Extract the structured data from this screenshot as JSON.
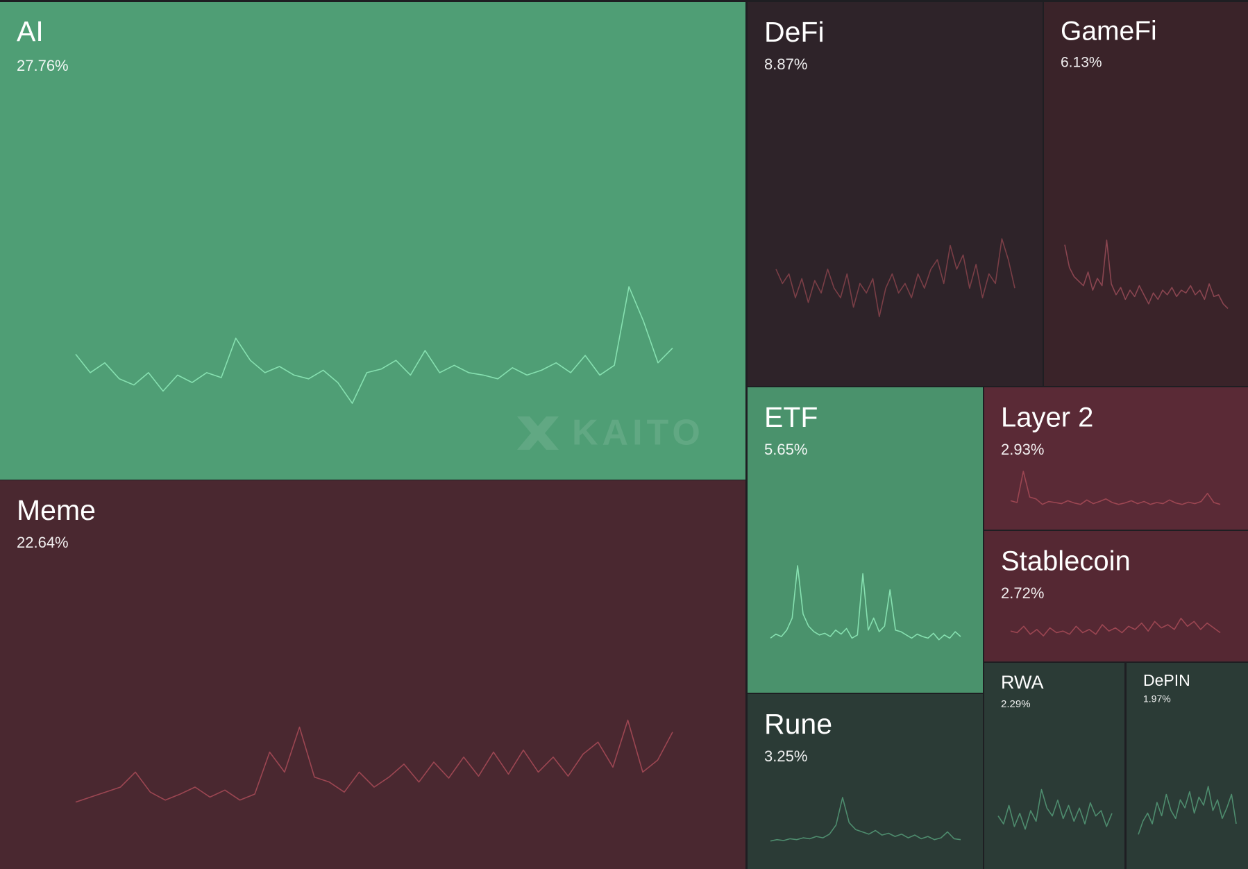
{
  "chart_data": {
    "type": "treemap",
    "watermark": "KAITO",
    "categories": [
      "AI",
      "Meme",
      "DeFi",
      "GameFi",
      "ETF",
      "Layer 2",
      "Stablecoin",
      "Rune",
      "RWA",
      "DePIN"
    ],
    "values": [
      27.76,
      22.64,
      8.87,
      6.13,
      5.65,
      2.93,
      2.72,
      3.25,
      2.29,
      1.97
    ],
    "value_labels": [
      "27.76%",
      "22.64%",
      "8.87%",
      "6.13%",
      "5.65%",
      "2.93%",
      "2.72%",
      "3.25%",
      "2.29%",
      "1.97%"
    ],
    "colors": [
      "#4f9e75",
      "#4a2830",
      "#2e2329",
      "#3a2329",
      "#4a926c",
      "#5a2a36",
      "#552833",
      "#2b3b36",
      "#2b3b36",
      "#2b3b36"
    ],
    "line_colors": [
      "#86e0b0",
      "#9c4652",
      "#7a3e46",
      "#8a4550",
      "#86e0b0",
      "#9c4652",
      "#9c4652",
      "#4e8c6e",
      "#4e8c6e",
      "#4e8c6e"
    ],
    "trend_ylim": [
      0,
      100
    ],
    "trends": [
      [
        45,
        30,
        38,
        25,
        20,
        30,
        15,
        28,
        22,
        30,
        26,
        58,
        40,
        30,
        35,
        28,
        25,
        32,
        22,
        5,
        30,
        33,
        40,
        28,
        48,
        30,
        36,
        30,
        28,
        25,
        34,
        28,
        32,
        38,
        30,
        44,
        28,
        36,
        100,
        72,
        38,
        50
      ],
      [
        10,
        15,
        20,
        25,
        40,
        20,
        12,
        18,
        25,
        15,
        22,
        12,
        18,
        60,
        40,
        85,
        35,
        30,
        20,
        40,
        25,
        35,
        48,
        30,
        50,
        34,
        55,
        36,
        60,
        38,
        62,
        40,
        55,
        36,
        58,
        70,
        45,
        92,
        40,
        52,
        80
      ],
      [
        60,
        45,
        55,
        30,
        50,
        25,
        48,
        35,
        60,
        40,
        30,
        55,
        20,
        45,
        35,
        50,
        10,
        40,
        55,
        35,
        45,
        30,
        55,
        40,
        60,
        70,
        45,
        85,
        60,
        75,
        40,
        65,
        30,
        55,
        45,
        92,
        70,
        40
      ],
      [
        85,
        60,
        50,
        45,
        40,
        55,
        35,
        48,
        40,
        90,
        42,
        30,
        38,
        25,
        35,
        28,
        40,
        30,
        20,
        32,
        25,
        35,
        30,
        38,
        28,
        35,
        32,
        40,
        30,
        35,
        25,
        42,
        28,
        30,
        20,
        15
      ],
      [
        10,
        15,
        12,
        20,
        35,
        100,
        40,
        25,
        18,
        14,
        16,
        12,
        20,
        15,
        22,
        10,
        14,
        90,
        20,
        35,
        18,
        25,
        70,
        20,
        18,
        14,
        10,
        15,
        12,
        10,
        16,
        8,
        14,
        10,
        18,
        12
      ],
      [
        20,
        15,
        100,
        30,
        25,
        10,
        18,
        15,
        12,
        20,
        14,
        10,
        22,
        12,
        18,
        25,
        15,
        10,
        14,
        20,
        12,
        18,
        10,
        15,
        12,
        22,
        14,
        10,
        16,
        12,
        18,
        40,
        15,
        10
      ],
      [
        30,
        25,
        45,
        20,
        35,
        15,
        40,
        25,
        30,
        20,
        45,
        25,
        35,
        20,
        50,
        30,
        40,
        25,
        45,
        35,
        55,
        30,
        60,
        40,
        50,
        35,
        70,
        45,
        60,
        35,
        55,
        40,
        25
      ],
      [
        5,
        8,
        6,
        10,
        8,
        12,
        10,
        15,
        12,
        20,
        40,
        100,
        45,
        30,
        25,
        20,
        28,
        18,
        22,
        15,
        20,
        12,
        18,
        10,
        15,
        8,
        12,
        25,
        10,
        8
      ],
      [
        40,
        25,
        60,
        20,
        45,
        15,
        50,
        30,
        90,
        55,
        40,
        70,
        35,
        60,
        30,
        55,
        25,
        65,
        40,
        50,
        20,
        45
      ],
      [
        10,
        35,
        50,
        30,
        70,
        45,
        85,
        55,
        40,
        75,
        60,
        90,
        50,
        80,
        65,
        100,
        55,
        75,
        40,
        60,
        85,
        30
      ]
    ]
  }
}
